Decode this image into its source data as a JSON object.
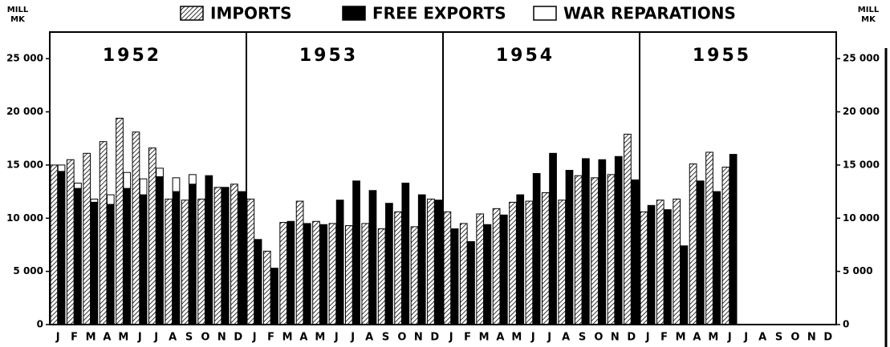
{
  "chart_data": {
    "type": "bar",
    "ylabel": [
      "MILL",
      "MK"
    ],
    "y2label": [
      "MILL",
      "MK"
    ],
    "years": [
      "1952",
      "1953",
      "1954",
      "1955"
    ],
    "categories": [
      "J",
      "F",
      "M",
      "A",
      "M",
      "J",
      "J",
      "A",
      "S",
      "O",
      "N",
      "D",
      "J",
      "F",
      "M",
      "A",
      "M",
      "J",
      "J",
      "A",
      "S",
      "O",
      "N",
      "D",
      "J",
      "F",
      "M",
      "A",
      "M",
      "J",
      "J",
      "A",
      "S",
      "O",
      "N",
      "D",
      "J",
      "F",
      "M",
      "A",
      "M",
      "J",
      "J",
      "A",
      "S",
      "O",
      "N",
      "D"
    ],
    "series": [
      {
        "name": "IMPORTS",
        "color": "#000000",
        "pattern": "hatch",
        "values": [
          15000,
          15500,
          16100,
          17200,
          19400,
          18100,
          16600,
          11800,
          11700,
          11800,
          12900,
          13200,
          11800,
          6900,
          9600,
          11600,
          9700,
          9500,
          9300,
          9500,
          9000,
          10600,
          9200,
          11800,
          10600,
          9500,
          10400,
          10900,
          11500,
          11600,
          12400,
          11700,
          14000,
          13800,
          14100,
          17900,
          10600,
          11700,
          11800,
          15100,
          16200,
          14800,
          null,
          null,
          null,
          null,
          null,
          null
        ]
      },
      {
        "name": "FREE EXPORTS",
        "color": "#000000",
        "values": [
          14400,
          12800,
          11500,
          11300,
          12800,
          12200,
          13900,
          12500,
          13200,
          14000,
          12900,
          12500,
          8000,
          5300,
          9700,
          9500,
          9400,
          11700,
          13500,
          12600,
          11400,
          13300,
          12200,
          11700,
          9000,
          7800,
          9400,
          10300,
          12200,
          14200,
          16100,
          14500,
          15600,
          15500,
          15800,
          13600,
          11200,
          10800,
          7400,
          13500,
          12500,
          16000,
          null,
          null,
          null,
          null,
          null,
          null
        ]
      },
      {
        "name": "WAR REPARATIONS",
        "color": "#ffffff",
        "stack": true,
        "values": [
          600,
          500,
          300,
          900,
          1500,
          1500,
          800,
          1300,
          900,
          null,
          null,
          null,
          null,
          null,
          null,
          null,
          null,
          null,
          null,
          null,
          null,
          null,
          null,
          null,
          null,
          null,
          null,
          null,
          null,
          null,
          null,
          null,
          null,
          null,
          null,
          null,
          null,
          null,
          null,
          null,
          null,
          null,
          null,
          null,
          null,
          null,
          null,
          null
        ]
      }
    ],
    "ylim": [
      0,
      27500
    ],
    "yticks": [
      0,
      {
        "value": 5000,
        "label": "5 000"
      },
      {
        "value": 10000,
        "label": "10 000"
      },
      {
        "value": 15000,
        "label": "15 000"
      },
      {
        "value": 20000,
        "label": "20 000"
      },
      {
        "value": 25000,
        "label": "25 000"
      }
    ],
    "y2lim": [
      0,
      27500
    ],
    "y2ticks": [
      0,
      {
        "value": 5000,
        "label": "5 000"
      },
      {
        "value": 10000,
        "label": "10 000"
      },
      {
        "value": 15000,
        "label": "15 000"
      },
      {
        "value": 20000,
        "label": "20 000"
      },
      {
        "value": 25000,
        "label": "25 000"
      }
    ]
  }
}
